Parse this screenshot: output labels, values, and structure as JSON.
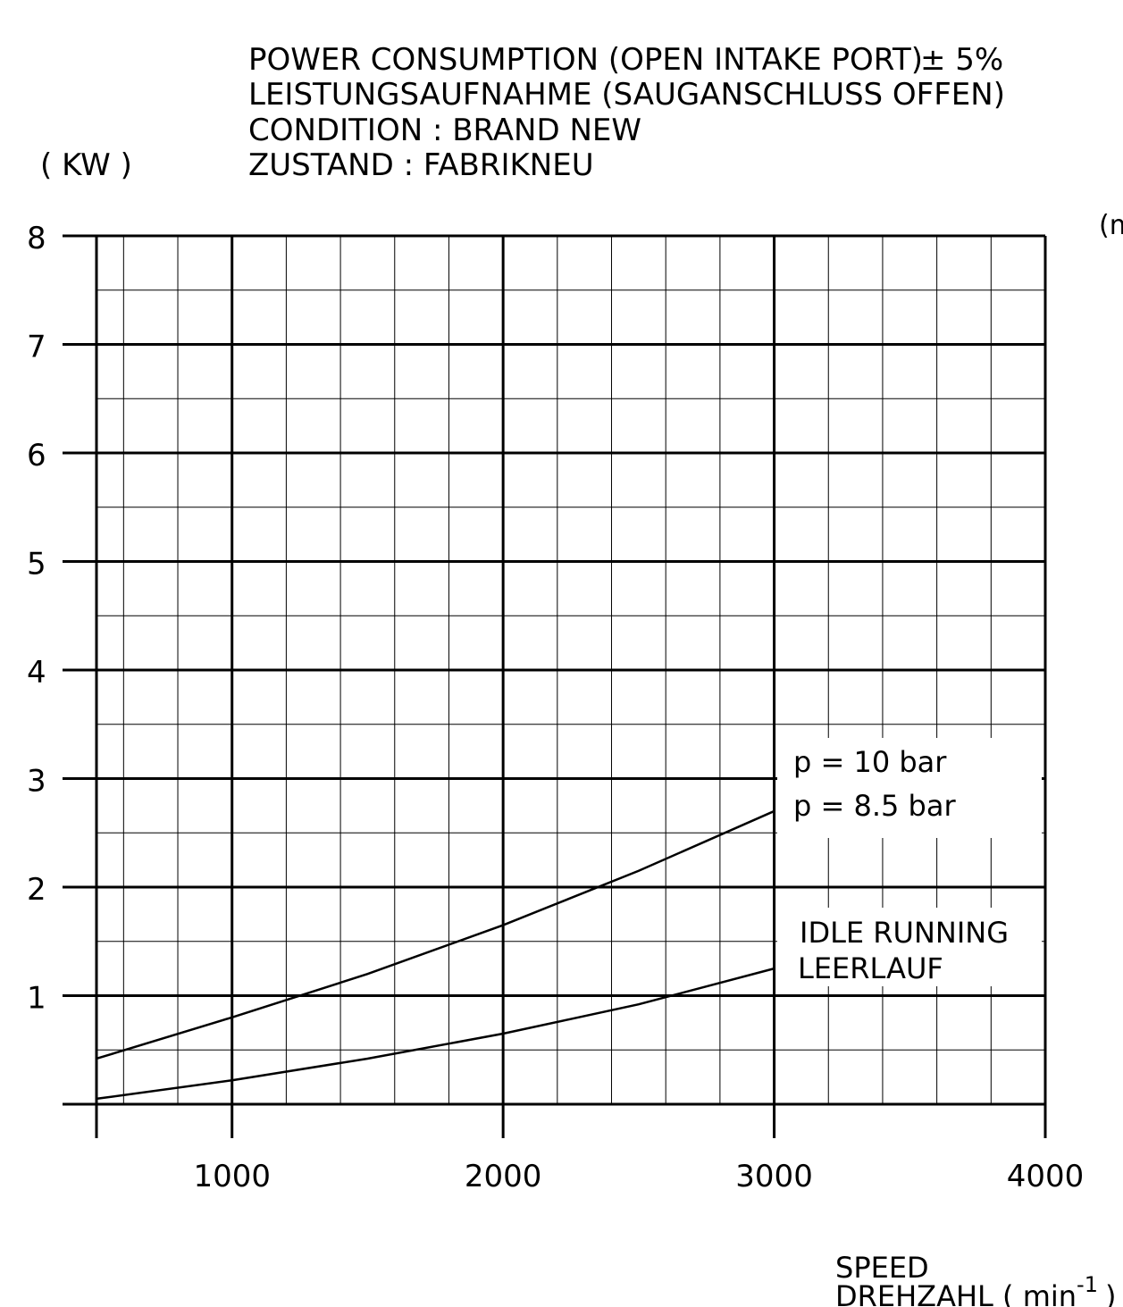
{
  "title_lines": [
    "POWER CONSUMPTION (OPEN INTAKE PORT)",
    "LEISTUNGSAUFNAHME (SAUGANSCHLUSS OFFEN)",
    "CONDITION : BRAND NEW",
    "ZUSTAND : FABRIKNEU"
  ],
  "tolerance": "± 5%",
  "y_unit": "( KW )",
  "right_unit_fragment": "(m",
  "x_label_line1": "SPEED",
  "x_label_line2": "DREHZAHL ( min",
  "x_label_exp": "-1",
  "x_label_close": ")",
  "chart_data": {
    "type": "line",
    "x": [
      500,
      1000,
      1500,
      2000,
      2500,
      3000
    ],
    "series": [
      {
        "name": "p = 10 bar",
        "values": [
          null,
          null,
          null,
          null,
          null,
          null
        ]
      },
      {
        "name": "p = 8.5 bar",
        "values": [
          0.42,
          0.8,
          1.2,
          1.65,
          2.15,
          2.7
        ]
      },
      {
        "name": "IDLE RUNNING LEERLAUF",
        "values": [
          0.05,
          0.22,
          0.42,
          0.65,
          0.92,
          1.25
        ]
      }
    ],
    "legend_labels": [
      "p = 10 bar",
      "p = 8.5 bar"
    ],
    "idle_label": [
      "IDLE RUNNING",
      "LEERLAUF"
    ],
    "xlim": [
      500,
      4000
    ],
    "ylim": [
      0,
      8
    ],
    "x_ticks": [
      1000,
      2000,
      3000,
      4000
    ],
    "y_ticks": [
      1,
      2,
      3,
      4,
      5,
      6,
      7,
      8
    ],
    "grid": true
  }
}
